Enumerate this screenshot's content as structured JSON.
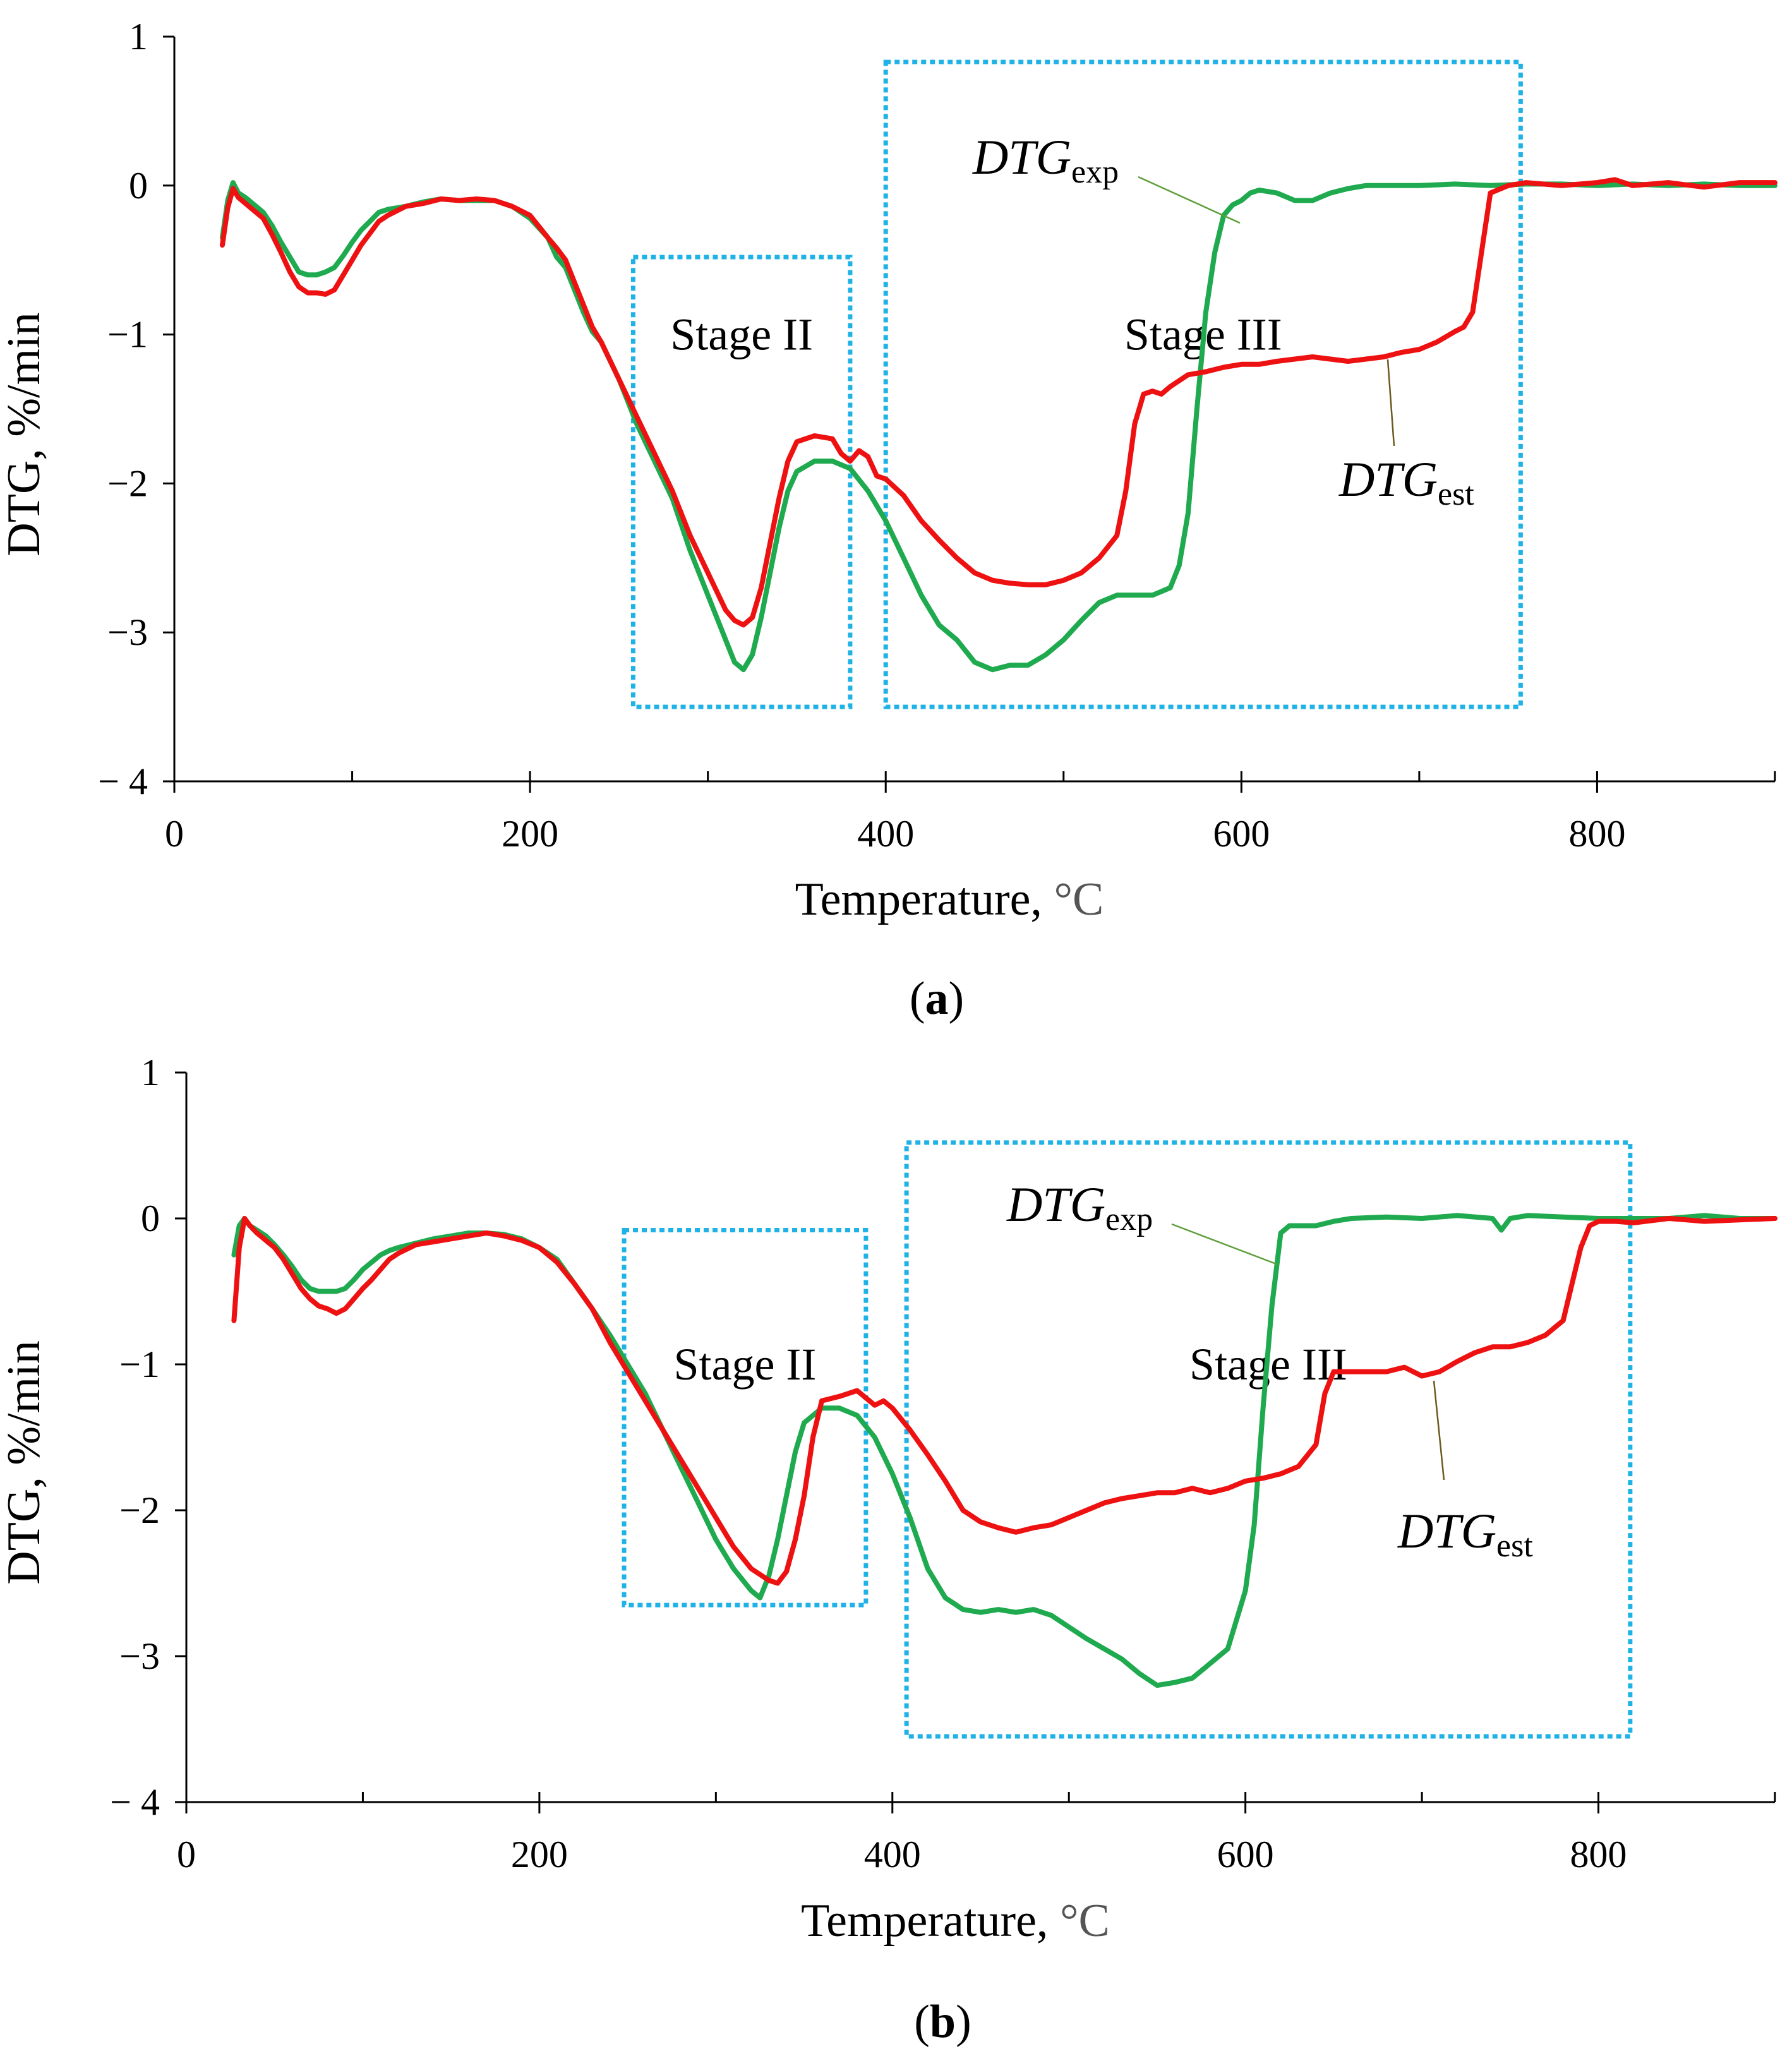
{
  "colors": {
    "exp": "#1faa4f",
    "est": "#ee1111",
    "stage_box": "#1fb2e6",
    "axis": "#000000",
    "leader_exp": "#5c9e3a",
    "leader_est": "#6b5a1e"
  },
  "chart_data": [
    {
      "type": "line",
      "panel_label": "a",
      "xlabel": "Temperature, ",
      "xlabel_unit": "°C",
      "ylabel": "DTG, %/min",
      "xlim": [
        0,
        900
      ],
      "ylim": [
        -4,
        1
      ],
      "x_ticks": [
        0,
        200,
        400,
        600,
        800
      ],
      "x_tick_labels": [
        "0",
        "200",
        "400",
        "600",
        "800"
      ],
      "y_ticks": [
        1,
        0,
        -1,
        -2,
        -3,
        -4
      ],
      "y_tick_labels": [
        "1",
        "0",
        "−1",
        "−2",
        "−3",
        "− 4"
      ],
      "grid": false,
      "series": [
        {
          "name": "DTGexp",
          "label_main": "DTG",
          "label_sub": "exp",
          "color": "#1faa4f",
          "x": [
            27,
            30,
            33,
            36,
            40,
            45,
            50,
            55,
            60,
            65,
            70,
            75,
            80,
            85,
            90,
            95,
            100,
            105,
            110,
            115,
            120,
            125,
            130,
            140,
            150,
            160,
            170,
            180,
            190,
            200,
            210,
            215,
            220,
            225,
            230,
            235,
            240,
            250,
            255,
            260,
            270,
            280,
            290,
            300,
            310,
            315,
            320,
            325,
            330,
            335,
            340,
            345,
            350,
            360,
            370,
            380,
            390,
            400,
            410,
            420,
            430,
            440,
            450,
            460,
            470,
            480,
            490,
            500,
            510,
            520,
            530,
            540,
            550,
            560,
            565,
            570,
            575,
            580,
            585,
            590,
            595,
            600,
            605,
            610,
            620,
            630,
            640,
            650,
            660,
            670,
            680,
            700,
            720,
            740,
            760,
            780,
            800,
            820,
            840,
            860,
            880,
            900
          ],
          "y": [
            -0.35,
            -0.1,
            0.02,
            -0.05,
            -0.08,
            -0.13,
            -0.18,
            -0.27,
            -0.38,
            -0.48,
            -0.58,
            -0.6,
            -0.6,
            -0.58,
            -0.55,
            -0.47,
            -0.38,
            -0.3,
            -0.24,
            -0.18,
            -0.16,
            -0.15,
            -0.14,
            -0.11,
            -0.09,
            -0.1,
            -0.1,
            -0.1,
            -0.14,
            -0.22,
            -0.35,
            -0.48,
            -0.55,
            -0.7,
            -0.85,
            -0.98,
            -1.05,
            -1.3,
            -1.45,
            -1.6,
            -1.85,
            -2.1,
            -2.45,
            -2.75,
            -3.05,
            -3.2,
            -3.25,
            -3.15,
            -2.9,
            -2.6,
            -2.3,
            -2.05,
            -1.92,
            -1.85,
            -1.85,
            -1.9,
            -2.05,
            -2.25,
            -2.5,
            -2.75,
            -2.95,
            -3.05,
            -3.2,
            -3.25,
            -3.22,
            -3.22,
            -3.15,
            -3.05,
            -2.92,
            -2.8,
            -2.75,
            -2.75,
            -2.75,
            -2.7,
            -2.55,
            -2.2,
            -1.5,
            -0.85,
            -0.45,
            -0.2,
            -0.13,
            -0.1,
            -0.05,
            -0.03,
            -0.05,
            -0.1,
            -0.1,
            -0.05,
            -0.02,
            0,
            0,
            0,
            0.01,
            0,
            0.01,
            0.01,
            0,
            0.01,
            0,
            0.01,
            0,
            0
          ]
        },
        {
          "name": "DTGest",
          "label_main": "DTG",
          "label_sub": "est",
          "color": "#ee1111",
          "x": [
            27,
            30,
            33,
            36,
            40,
            45,
            50,
            55,
            60,
            65,
            70,
            75,
            80,
            85,
            90,
            95,
            100,
            105,
            110,
            115,
            120,
            130,
            140,
            150,
            160,
            170,
            180,
            190,
            200,
            210,
            215,
            220,
            225,
            230,
            235,
            240,
            250,
            260,
            270,
            280,
            290,
            300,
            310,
            315,
            320,
            325,
            330,
            335,
            340,
            345,
            350,
            360,
            370,
            375,
            380,
            385,
            390,
            395,
            400,
            410,
            420,
            430,
            440,
            450,
            460,
            470,
            480,
            490,
            500,
            510,
            520,
            530,
            535,
            540,
            545,
            550,
            555,
            560,
            570,
            580,
            590,
            600,
            610,
            620,
            640,
            660,
            680,
            690,
            700,
            710,
            720,
            725,
            730,
            735,
            740,
            750,
            760,
            780,
            800,
            810,
            820,
            840,
            860,
            880,
            900
          ],
          "y": [
            -0.4,
            -0.15,
            -0.02,
            -0.08,
            -0.12,
            -0.17,
            -0.22,
            -0.33,
            -0.45,
            -0.58,
            -0.68,
            -0.72,
            -0.72,
            -0.73,
            -0.7,
            -0.6,
            -0.5,
            -0.4,
            -0.32,
            -0.24,
            -0.2,
            -0.14,
            -0.12,
            -0.09,
            -0.1,
            -0.09,
            -0.1,
            -0.14,
            -0.2,
            -0.35,
            -0.42,
            -0.5,
            -0.65,
            -0.8,
            -0.95,
            -1.05,
            -1.3,
            -1.55,
            -1.8,
            -2.05,
            -2.35,
            -2.6,
            -2.85,
            -2.92,
            -2.95,
            -2.9,
            -2.7,
            -2.4,
            -2.1,
            -1.85,
            -1.72,
            -1.68,
            -1.7,
            -1.8,
            -1.85,
            -1.78,
            -1.82,
            -1.95,
            -1.97,
            -2.08,
            -2.25,
            -2.38,
            -2.5,
            -2.6,
            -2.65,
            -2.67,
            -2.68,
            -2.68,
            -2.65,
            -2.6,
            -2.5,
            -2.35,
            -2.05,
            -1.6,
            -1.4,
            -1.38,
            -1.4,
            -1.35,
            -1.27,
            -1.25,
            -1.22,
            -1.2,
            -1.2,
            -1.18,
            -1.15,
            -1.18,
            -1.15,
            -1.12,
            -1.1,
            -1.05,
            -0.98,
            -0.95,
            -0.85,
            -0.45,
            -0.05,
            0.0,
            0.02,
            0,
            0.02,
            0.04,
            0,
            0.02,
            -0.01,
            0.02,
            0.02
          ]
        }
      ],
      "annotations": [
        {
          "name": "stage-ii",
          "text": "Stage II",
          "x_range": [
            258,
            380
          ],
          "y_range": [
            -3.5,
            -0.48
          ]
        },
        {
          "name": "stage-iii",
          "text": "Stage III",
          "x_range": [
            400,
            757
          ],
          "y_range": [
            -3.5,
            0.83
          ]
        }
      ]
    },
    {
      "type": "line",
      "panel_label": "b",
      "xlabel": "Temperature, ",
      "xlabel_unit": "°C",
      "ylabel": "DTG, %/min",
      "xlim": [
        0,
        900
      ],
      "ylim": [
        -4,
        1
      ],
      "x_ticks": [
        0,
        200,
        400,
        600,
        800
      ],
      "x_tick_labels": [
        "0",
        "200",
        "400",
        "600",
        "800"
      ],
      "y_ticks": [
        1,
        0,
        -1,
        -2,
        -3,
        -4
      ],
      "y_tick_labels": [
        "1",
        "0",
        "−1",
        "−2",
        "−3",
        "− 4"
      ],
      "grid": false,
      "series": [
        {
          "name": "DTGexp",
          "label_main": "DTG",
          "label_sub": "exp",
          "color": "#1faa4f",
          "x": [
            27,
            30,
            33,
            36,
            40,
            45,
            50,
            55,
            60,
            65,
            70,
            75,
            80,
            85,
            90,
            95,
            100,
            105,
            110,
            115,
            120,
            130,
            140,
            150,
            160,
            170,
            180,
            190,
            200,
            210,
            220,
            230,
            240,
            250,
            260,
            270,
            280,
            290,
            300,
            310,
            320,
            325,
            330,
            335,
            340,
            345,
            350,
            360,
            370,
            380,
            390,
            400,
            410,
            420,
            430,
            440,
            450,
            460,
            470,
            480,
            490,
            500,
            510,
            520,
            530,
            540,
            550,
            560,
            570,
            580,
            590,
            595,
            600,
            605,
            610,
            615,
            620,
            625,
            630,
            640,
            650,
            660,
            680,
            700,
            720,
            740,
            745,
            750,
            760,
            780,
            800,
            820,
            840,
            860,
            880,
            900
          ],
          "y": [
            -0.25,
            -0.05,
            0.0,
            -0.05,
            -0.08,
            -0.12,
            -0.18,
            -0.25,
            -0.33,
            -0.42,
            -0.48,
            -0.5,
            -0.5,
            -0.5,
            -0.48,
            -0.42,
            -0.35,
            -0.3,
            -0.25,
            -0.22,
            -0.2,
            -0.17,
            -0.14,
            -0.12,
            -0.1,
            -0.1,
            -0.11,
            -0.14,
            -0.2,
            -0.28,
            -0.45,
            -0.62,
            -0.8,
            -1.0,
            -1.2,
            -1.45,
            -1.7,
            -1.95,
            -2.2,
            -2.4,
            -2.55,
            -2.6,
            -2.45,
            -2.2,
            -1.9,
            -1.6,
            -1.4,
            -1.3,
            -1.3,
            -1.35,
            -1.5,
            -1.75,
            -2.05,
            -2.4,
            -2.6,
            -2.68,
            -2.7,
            -2.68,
            -2.7,
            -2.68,
            -2.72,
            -2.8,
            -2.88,
            -2.95,
            -3.02,
            -3.12,
            -3.2,
            -3.18,
            -3.15,
            -3.05,
            -2.95,
            -2.75,
            -2.55,
            -2.1,
            -1.3,
            -0.6,
            -0.1,
            -0.05,
            -0.05,
            -0.05,
            -0.02,
            0.0,
            0.01,
            0.0,
            0.02,
            0.0,
            -0.08,
            0.0,
            0.02,
            0.01,
            0.0,
            0.0,
            0.0,
            0.02,
            0.0,
            0.0
          ]
        },
        {
          "name": "DTGest",
          "label_main": "DTG",
          "label_sub": "est",
          "color": "#ee1111",
          "x": [
            27,
            30,
            33,
            36,
            40,
            45,
            50,
            55,
            60,
            65,
            70,
            75,
            80,
            85,
            90,
            95,
            100,
            105,
            110,
            115,
            120,
            130,
            140,
            150,
            160,
            170,
            180,
            190,
            200,
            210,
            220,
            230,
            240,
            250,
            260,
            270,
            280,
            290,
            300,
            310,
            320,
            330,
            335,
            340,
            345,
            350,
            355,
            360,
            370,
            380,
            390,
            395,
            400,
            410,
            420,
            430,
            440,
            450,
            460,
            470,
            480,
            490,
            500,
            510,
            520,
            530,
            540,
            550,
            560,
            570,
            580,
            590,
            600,
            610,
            620,
            630,
            640,
            645,
            650,
            660,
            670,
            680,
            690,
            700,
            710,
            720,
            730,
            740,
            750,
            760,
            770,
            780,
            785,
            790,
            795,
            800,
            810,
            820,
            840,
            860,
            880,
            900
          ],
          "y": [
            -0.7,
            -0.2,
            0.0,
            -0.05,
            -0.1,
            -0.15,
            -0.2,
            -0.28,
            -0.38,
            -0.48,
            -0.55,
            -0.6,
            -0.62,
            -0.65,
            -0.62,
            -0.55,
            -0.48,
            -0.42,
            -0.35,
            -0.28,
            -0.24,
            -0.18,
            -0.16,
            -0.14,
            -0.12,
            -0.1,
            -0.12,
            -0.15,
            -0.2,
            -0.3,
            -0.45,
            -0.62,
            -0.85,
            -1.05,
            -1.25,
            -1.45,
            -1.65,
            -1.85,
            -2.05,
            -2.25,
            -2.4,
            -2.48,
            -2.5,
            -2.42,
            -2.2,
            -1.9,
            -1.5,
            -1.25,
            -1.22,
            -1.18,
            -1.28,
            -1.25,
            -1.3,
            -1.45,
            -1.62,
            -1.8,
            -2.0,
            -2.08,
            -2.12,
            -2.15,
            -2.12,
            -2.1,
            -2.05,
            -2.0,
            -1.95,
            -1.92,
            -1.9,
            -1.88,
            -1.88,
            -1.85,
            -1.88,
            -1.85,
            -1.8,
            -1.78,
            -1.75,
            -1.7,
            -1.55,
            -1.2,
            -1.05,
            -1.05,
            -1.05,
            -1.05,
            -1.02,
            -1.08,
            -1.05,
            -0.98,
            -0.92,
            -0.88,
            -0.88,
            -0.85,
            -0.8,
            -0.7,
            -0.45,
            -0.2,
            -0.05,
            -0.02,
            -0.02,
            -0.03,
            0.0,
            -0.02,
            -0.01,
            0.0
          ]
        }
      ],
      "annotations": [
        {
          "name": "stage-ii",
          "text": "Stage II",
          "x_range": [
            248,
            385
          ],
          "y_range": [
            -2.65,
            -0.08
          ]
        },
        {
          "name": "stage-iii",
          "text": "Stage III",
          "x_range": [
            408,
            818
          ],
          "y_range": [
            -3.55,
            0.52
          ]
        }
      ]
    }
  ]
}
